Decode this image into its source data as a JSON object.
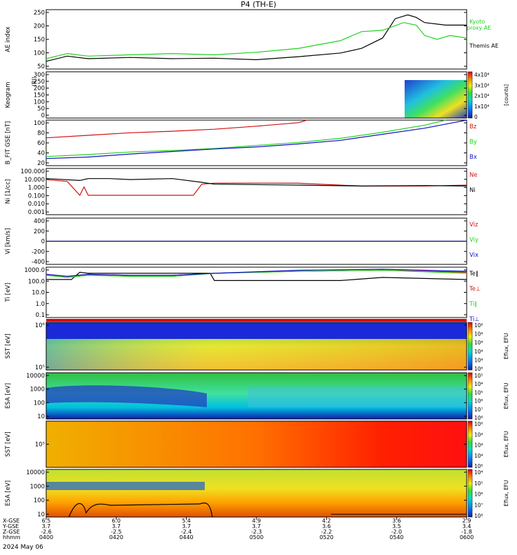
{
  "title": "P4 (TH-E)",
  "date_label": "2024 May 06",
  "footer": {
    "row_labels": [
      "X-GSE",
      "Y-GSE",
      "Z-GSE",
      "hhmm"
    ],
    "columns": [
      {
        "x": "6.5",
        "y": "3.7",
        "z": "-2.6",
        "t": "0400"
      },
      {
        "x": "6.0",
        "y": "3.7",
        "z": "-2.5",
        "t": "0420"
      },
      {
        "x": "5.4",
        "y": "3.7",
        "z": "-2.4",
        "t": "0440"
      },
      {
        "x": "4.9",
        "y": "3.7",
        "z": "-2.3",
        "t": "0500"
      },
      {
        "x": "4.2",
        "y": "3.6",
        "z": "-2.2",
        "t": "0520"
      },
      {
        "x": "3.6",
        "y": "3.5",
        "z": "-2.0",
        "t": "0540"
      },
      {
        "x": "2.9",
        "y": "3.4",
        "z": "-1.8",
        "t": "0600"
      }
    ]
  },
  "colors": {
    "black": "#000000",
    "green": "#1fd11f",
    "red": "#d01010",
    "blue": "#1010c8"
  },
  "chart_data": [
    {
      "type": "line",
      "panel": "ae",
      "ylabel": "AE index",
      "y_ticks": [
        "50",
        "100",
        "150",
        "200",
        "250"
      ],
      "ylim": [
        30,
        260
      ],
      "series": [
        {
          "name": "Themis AE",
          "color": "#000000",
          "x": [
            0,
            0.05,
            0.1,
            0.2,
            0.3,
            0.4,
            0.5,
            0.6,
            0.7,
            0.75,
            0.8,
            0.83,
            0.86,
            0.88,
            0.9,
            0.95,
            1.0
          ],
          "values": [
            60,
            80,
            70,
            75,
            70,
            72,
            66,
            78,
            92,
            110,
            150,
            225,
            240,
            230,
            210,
            200,
            200
          ]
        },
        {
          "name": "Kyoto proxy AE",
          "color": "#1fd11f",
          "x": [
            0,
            0.05,
            0.1,
            0.2,
            0.3,
            0.4,
            0.5,
            0.6,
            0.7,
            0.75,
            0.8,
            0.85,
            0.88,
            0.9,
            0.93,
            0.96,
            1.0
          ],
          "values": [
            70,
            90,
            80,
            85,
            90,
            85,
            95,
            110,
            140,
            175,
            180,
            210,
            200,
            160,
            145,
            160,
            150
          ]
        }
      ],
      "legend": [
        "Kyoto",
        "proxy AE",
        "Themis AE"
      ]
    },
    {
      "type": "heatmap",
      "panel": "keogram",
      "ylabel": "Keogram",
      "units": "(RI)",
      "y_ticks": [
        "0",
        "50",
        "100",
        "150",
        "200",
        "250",
        "300"
      ],
      "colorbar_ticks": [
        "0",
        "1x10⁴",
        "2x10⁴",
        "3x10⁴",
        "4x10⁴"
      ],
      "colorbar_label": "[counts]"
    },
    {
      "type": "line",
      "panel": "bfield",
      "ylabel": "B_FIT GSE [nT]",
      "y_ticks": [
        "20",
        "40",
        "60",
        "80",
        "100"
      ],
      "ylim": [
        10,
        100
      ],
      "series": [
        {
          "name": "Bz",
          "color": "#d01010",
          "x": [
            0,
            0.1,
            0.2,
            0.3,
            0.4,
            0.5,
            0.6,
            0.62
          ],
          "values": [
            65,
            70,
            75,
            78,
            82,
            88,
            95,
            100
          ]
        },
        {
          "name": "By",
          "color": "#1fd11f",
          "x": [
            0,
            0.1,
            0.2,
            0.3,
            0.4,
            0.5,
            0.6,
            0.7,
            0.8,
            0.9,
            0.95
          ],
          "values": [
            28,
            32,
            37,
            40,
            44,
            50,
            56,
            64,
            76,
            90,
            100
          ]
        },
        {
          "name": "Bx",
          "color": "#1010c8",
          "x": [
            0,
            0.1,
            0.2,
            0.3,
            0.4,
            0.5,
            0.6,
            0.7,
            0.8,
            0.9,
            1.0
          ],
          "values": [
            24,
            27,
            33,
            38,
            43,
            47,
            53,
            60,
            72,
            84,
            100
          ]
        }
      ]
    },
    {
      "type": "line",
      "panel": "density",
      "ylabel": "Ni [1/cc]",
      "y_ticks": [
        "0.001",
        "0.010",
        "0.100",
        "1.000",
        "10.000",
        "100.000"
      ],
      "ylim_log10": [
        -3,
        2
      ],
      "series": [
        {
          "name": "Ne",
          "color": "#d01010",
          "x": [
            0,
            0.05,
            0.08,
            0.09,
            0.1,
            0.12,
            0.13,
            0.2,
            0.35,
            0.37,
            0.4,
            0.6,
            0.75,
            0.9,
            1.0
          ],
          "log10_values": [
            0.8,
            0.6,
            -0.9,
            0.0,
            -0.9,
            -0.9,
            -0.9,
            -0.9,
            -0.9,
            0.3,
            0.4,
            0.4,
            0.1,
            0.1,
            0.2
          ]
        },
        {
          "name": "Ni",
          "color": "#000000",
          "x": [
            0,
            0.08,
            0.1,
            0.15,
            0.2,
            0.3,
            0.37,
            0.4,
            0.6,
            0.75,
            0.9,
            1.0
          ],
          "log10_values": [
            0.9,
            0.7,
            0.9,
            0.9,
            0.8,
            0.9,
            0.5,
            0.3,
            0.2,
            0.1,
            0.15,
            0.1
          ]
        }
      ]
    },
    {
      "type": "line",
      "panel": "velocity",
      "ylabel": "Vi [km/s]",
      "y_ticks": [
        "-400",
        "-200",
        "0",
        "200",
        "400"
      ],
      "ylim": [
        -500,
        500
      ],
      "series": [
        {
          "name": "Viz",
          "color": "#d01010",
          "x": [
            0,
            1
          ],
          "values": [
            0,
            0
          ]
        },
        {
          "name": "Viy",
          "color": "#1fd11f",
          "x": [
            0,
            1
          ],
          "values": [
            0,
            0
          ]
        },
        {
          "name": "Vix",
          "color": "#1010c8",
          "x": [
            0,
            1
          ],
          "values": [
            0,
            0
          ]
        }
      ]
    },
    {
      "type": "line",
      "panel": "temperature",
      "ylabel": "Ti [eV]",
      "y_ticks": [
        "0.1",
        "1.0",
        "10.0",
        "100.0",
        "1000.0"
      ],
      "ylim_log10": [
        -1.3,
        3.6
      ],
      "series": [
        {
          "name": "Te∥",
          "color": "#000000",
          "x": [
            0,
            0.06,
            0.08,
            0.1,
            0.15,
            0.2,
            0.3,
            0.39,
            0.4,
            0.7,
            0.8,
            1.0
          ],
          "log10_values": [
            2.4,
            2.4,
            3.1,
            3.0,
            3.0,
            3.0,
            3.0,
            3.0,
            2.3,
            2.3,
            2.6,
            2.4
          ]
        },
        {
          "name": "Te⊥",
          "color": "#d01010",
          "x": [
            0,
            0.05,
            0.1,
            0.2,
            0.3,
            0.4,
            0.6,
            0.8,
            1.0
          ],
          "log10_values": [
            2.9,
            2.7,
            2.9,
            2.8,
            2.8,
            3.0,
            3.2,
            3.3,
            3.1
          ]
        },
        {
          "name": "Ti∥",
          "color": "#1fd11f",
          "x": [
            0,
            0.05,
            0.1,
            0.2,
            0.3,
            0.4,
            0.6,
            0.8,
            1.0
          ],
          "log10_values": [
            2.8,
            2.6,
            2.8,
            2.7,
            2.7,
            3.0,
            3.2,
            3.3,
            3.0
          ]
        },
        {
          "name": "Ti⊥",
          "color": "#1010c8",
          "x": [
            0,
            0.05,
            0.1,
            0.2,
            0.3,
            0.4,
            0.6,
            0.8,
            1.0
          ],
          "log10_values": [
            2.9,
            2.7,
            2.9,
            2.8,
            2.8,
            3.0,
            3.3,
            3.4,
            3.2
          ]
        }
      ]
    },
    {
      "type": "heatmap",
      "panel": "sst_e",
      "ylabel": "SST [eV]",
      "y_ticks": [
        "10⁵",
        "10⁶"
      ],
      "colorbar_ticks": [
        "10⁶",
        "10⁴",
        "10⁴",
        "10⁴",
        "10⁴",
        "10⁶"
      ],
      "colorbar_label": "Eflux, EFU"
    },
    {
      "type": "heatmap",
      "panel": "esa_e",
      "ylabel": "ESA [eV]",
      "y_ticks": [
        "10",
        "100",
        "1000",
        "10000"
      ],
      "colorbar_ticks": [
        "10⁸",
        "10⁷",
        "10⁶",
        "10⁵",
        "10⁴",
        "10⁵"
      ],
      "colorbar_label": "Eflux, EFU"
    },
    {
      "type": "heatmap",
      "panel": "sst_i",
      "ylabel": "SST [eV]",
      "y_ticks": [
        "10⁵"
      ],
      "colorbar_ticks": [
        "10⁶",
        "10⁴",
        "10⁴",
        "10⁴",
        "10⁶"
      ],
      "colorbar_label": "Eflux, EFU"
    },
    {
      "type": "heatmap",
      "panel": "esa_i",
      "ylabel": "ESA [eV]",
      "y_ticks": [
        "10",
        "100",
        "1000",
        "10000"
      ],
      "colorbar_ticks": [
        "10⁸",
        "10⁷",
        "10⁶",
        "10⁵",
        "10⁴"
      ],
      "colorbar_label": "Eflux, EFU"
    }
  ]
}
